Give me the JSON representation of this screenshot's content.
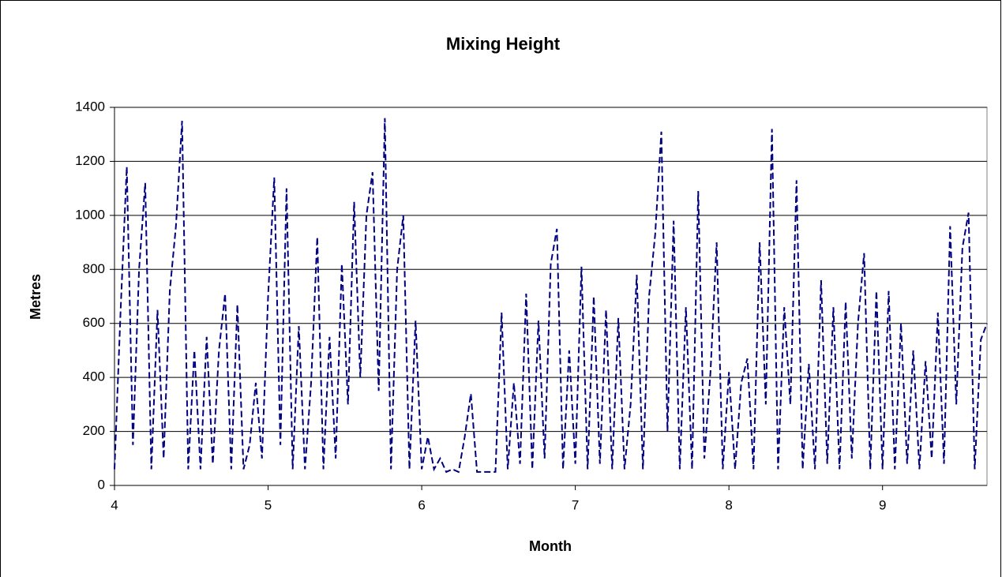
{
  "chart_data": {
    "type": "line",
    "title": "Mixing Height",
    "x_label": "Month",
    "y_label": "Metres",
    "x": [
      4.0,
      4.04,
      4.08,
      4.12,
      4.16,
      4.2,
      4.24,
      4.28,
      4.32,
      4.36,
      4.4,
      4.44,
      4.48,
      4.52,
      4.56,
      4.6,
      4.64,
      4.68,
      4.72,
      4.76,
      4.8,
      4.84,
      4.88,
      4.92,
      4.96,
      5.0,
      5.04,
      5.08,
      5.12,
      5.16,
      5.2,
      5.24,
      5.28,
      5.32,
      5.36,
      5.4,
      5.44,
      5.48,
      5.52,
      5.56,
      5.6,
      5.64,
      5.68,
      5.72,
      5.76,
      5.8,
      5.84,
      5.88,
      5.92,
      5.96,
      6.0,
      6.04,
      6.08,
      6.12,
      6.16,
      6.2,
      6.24,
      6.28,
      6.32,
      6.36,
      6.4,
      6.44,
      6.48,
      6.52,
      6.56,
      6.6,
      6.64,
      6.68,
      6.72,
      6.76,
      6.8,
      6.84,
      6.88,
      6.92,
      6.96,
      7.0,
      7.04,
      7.08,
      7.12,
      7.16,
      7.2,
      7.24,
      7.28,
      7.32,
      7.36,
      7.4,
      7.44,
      7.48,
      7.52,
      7.56,
      7.6,
      7.64,
      7.68,
      7.72,
      7.76,
      7.8,
      7.84,
      7.88,
      7.92,
      7.96,
      8.0,
      8.04,
      8.08,
      8.12,
      8.16,
      8.2,
      8.24,
      8.28,
      8.32,
      8.36,
      8.4,
      8.44,
      8.48,
      8.52,
      8.56,
      8.6,
      8.64,
      8.68,
      8.72,
      8.76,
      8.8,
      8.84,
      8.88,
      8.92,
      8.96,
      9.0,
      9.04,
      9.08,
      9.12,
      9.16,
      9.2,
      9.24,
      9.28,
      9.32,
      9.36,
      9.4,
      9.44,
      9.48,
      9.52,
      9.56,
      9.6,
      9.64,
      9.68
    ],
    "series": [
      {
        "color": "#000080",
        "values": [
          60,
          650,
          1180,
          150,
          800,
          1120,
          60,
          650,
          100,
          720,
          960,
          1350,
          60,
          500,
          60,
          550,
          80,
          500,
          710,
          60,
          670,
          60,
          150,
          380,
          100,
          700,
          1140,
          150,
          1100,
          60,
          590,
          60,
          380,
          920,
          60,
          550,
          100,
          820,
          300,
          1050,
          400,
          1000,
          1160,
          350,
          1360,
          60,
          800,
          1000,
          60,
          610,
          60,
          180,
          60,
          100,
          50,
          60,
          50,
          180,
          340,
          50,
          50,
          50,
          50,
          640,
          60,
          380,
          80,
          710,
          60,
          610,
          100,
          820,
          950,
          60,
          500,
          80,
          810,
          60,
          700,
          80,
          650,
          60,
          620,
          60,
          300,
          780,
          60,
          700,
          930,
          1310,
          200,
          980,
          60,
          660,
          60,
          1090,
          100,
          420,
          900,
          60,
          420,
          60,
          380,
          470,
          60,
          900,
          300,
          1320,
          60,
          660,
          300,
          1130,
          60,
          450,
          60,
          760,
          80,
          660,
          60,
          680,
          100,
          600,
          860,
          60,
          720,
          60,
          720,
          60,
          600,
          80,
          500,
          60,
          460,
          100,
          640,
          80,
          960,
          300,
          880,
          1010,
          60,
          540,
          600
        ]
      }
    ],
    "xlim": [
      4,
      9.68
    ],
    "xticks": [
      4,
      5,
      6,
      7,
      8,
      9
    ],
    "ylim": [
      0,
      1400
    ],
    "yticks": [
      0,
      200,
      400,
      600,
      800,
      1000,
      1200,
      1400
    ],
    "grid": true
  }
}
